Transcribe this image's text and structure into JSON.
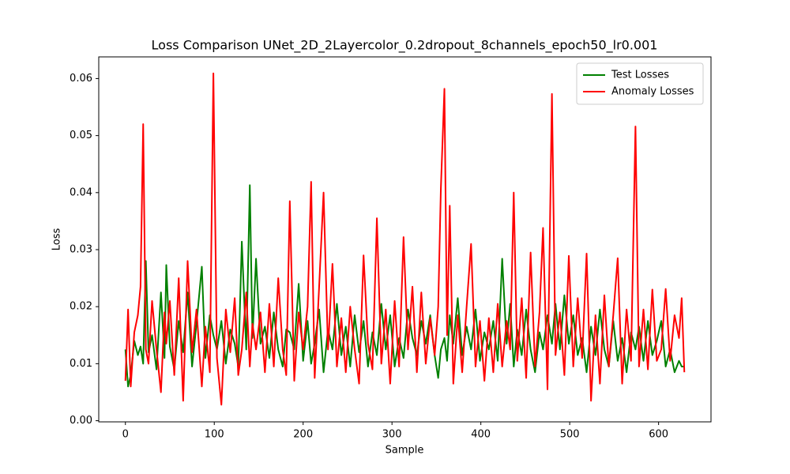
{
  "chart_data": {
    "type": "line",
    "title": "Loss Comparison UNet_2D_2Layercolor_0.2dropout_8channels_epoch50_lr0.001",
    "x_label": "Sample",
    "y_label": "Loss",
    "x": [
      0,
      3,
      6,
      10,
      14,
      17,
      20,
      23,
      26,
      30,
      35,
      40,
      44,
      46,
      50,
      55,
      60,
      65,
      70,
      75,
      80,
      86,
      90,
      95,
      99,
      103,
      108,
      113,
      118,
      123,
      127,
      131,
      136,
      140,
      143,
      147,
      152,
      157,
      162,
      167,
      172,
      177,
      181,
      185,
      190,
      195,
      200,
      205,
      209,
      213,
      218,
      223,
      228,
      233,
      238,
      243,
      248,
      253,
      258,
      263,
      268,
      273,
      278,
      283,
      288,
      293,
      298,
      303,
      308,
      313,
      318,
      323,
      328,
      333,
      338,
      343,
      348,
      352,
      355,
      359,
      362,
      365,
      369,
      374,
      379,
      384,
      389,
      394,
      399,
      404,
      409,
      414,
      419,
      424,
      429,
      433,
      437,
      441,
      446,
      451,
      456,
      461,
      466,
      470,
      475,
      480,
      484,
      489,
      494,
      499,
      504,
      509,
      514,
      519,
      524,
      529,
      534,
      539,
      544,
      549,
      554,
      559,
      564,
      569,
      574,
      578,
      583,
      588,
      593,
      598,
      603,
      608,
      613,
      618,
      623,
      626,
      629
    ],
    "series": [
      {
        "name": "Test Losses",
        "color": "#008000",
        "values": [
          0.0125,
          0.006,
          0.008,
          0.014,
          0.0115,
          0.013,
          0.01,
          0.028,
          0.012,
          0.015,
          0.009,
          0.0225,
          0.011,
          0.0273,
          0.013,
          0.009,
          0.0175,
          0.012,
          0.0225,
          0.0095,
          0.017,
          0.027,
          0.011,
          0.0185,
          0.015,
          0.0125,
          0.0175,
          0.01,
          0.016,
          0.0135,
          0.0095,
          0.0314,
          0.0125,
          0.0413,
          0.0145,
          0.0284,
          0.0135,
          0.0165,
          0.011,
          0.019,
          0.0125,
          0.0095,
          0.016,
          0.0155,
          0.0125,
          0.024,
          0.0105,
          0.0175,
          0.01,
          0.0135,
          0.0195,
          0.0085,
          0.016,
          0.0125,
          0.0205,
          0.0115,
          0.0165,
          0.0095,
          0.0185,
          0.012,
          0.0175,
          0.0095,
          0.0155,
          0.0115,
          0.0205,
          0.0125,
          0.0185,
          0.0095,
          0.0145,
          0.011,
          0.0195,
          0.0145,
          0.0115,
          0.0175,
          0.0135,
          0.0185,
          0.0115,
          0.0075,
          0.0125,
          0.0145,
          0.0105,
          0.0185,
          0.0135,
          0.0215,
          0.0115,
          0.0165,
          0.0125,
          0.0195,
          0.0105,
          0.0155,
          0.0125,
          0.0175,
          0.0105,
          0.0284,
          0.0135,
          0.0205,
          0.0095,
          0.016,
          0.0115,
          0.0195,
          0.0125,
          0.0085,
          0.0155,
          0.0125,
          0.0185,
          0.0135,
          0.0205,
          0.0125,
          0.022,
          0.0135,
          0.0185,
          0.0115,
          0.0145,
          0.0085,
          0.0165,
          0.0115,
          0.0195,
          0.0125,
          0.0095,
          0.0175,
          0.0105,
          0.0145,
          0.0085,
          0.0155,
          0.0125,
          0.0165,
          0.0105,
          0.0175,
          0.0115,
          0.014,
          0.0175,
          0.0095,
          0.0125,
          0.0085,
          0.0105,
          0.0095,
          0.0095
        ]
      },
      {
        "name": "Anomaly Losses",
        "color": "#ff0000",
        "values": [
          0.007,
          0.0195,
          0.006,
          0.0155,
          0.0185,
          0.0235,
          0.052,
          0.0125,
          0.01,
          0.021,
          0.0125,
          0.005,
          0.019,
          0.0135,
          0.021,
          0.008,
          0.025,
          0.0035,
          0.028,
          0.012,
          0.0195,
          0.006,
          0.0165,
          0.0085,
          0.0609,
          0.011,
          0.0028,
          0.0195,
          0.012,
          0.0215,
          0.008,
          0.0125,
          0.0225,
          0.0095,
          0.017,
          0.0125,
          0.019,
          0.0085,
          0.0205,
          0.0095,
          0.025,
          0.0125,
          0.008,
          0.0385,
          0.007,
          0.019,
          0.0125,
          0.02,
          0.0419,
          0.0075,
          0.0235,
          0.04,
          0.0125,
          0.0275,
          0.0095,
          0.018,
          0.0085,
          0.02,
          0.0125,
          0.0065,
          0.029,
          0.0135,
          0.009,
          0.0355,
          0.01,
          0.0195,
          0.0065,
          0.021,
          0.0095,
          0.0322,
          0.0125,
          0.0235,
          0.0085,
          0.0225,
          0.01,
          0.018,
          0.0115,
          0.02,
          0.0407,
          0.0582,
          0.015,
          0.0377,
          0.0065,
          0.0185,
          0.0085,
          0.02,
          0.031,
          0.0095,
          0.0175,
          0.007,
          0.018,
          0.0085,
          0.0205,
          0.0095,
          0.0175,
          0.0125,
          0.04,
          0.0105,
          0.0215,
          0.0075,
          0.0295,
          0.0095,
          0.019,
          0.0338,
          0.0055,
          0.0573,
          0.0115,
          0.019,
          0.008,
          0.0289,
          0.0095,
          0.0215,
          0.011,
          0.0293,
          0.0035,
          0.0185,
          0.0065,
          0.022,
          0.0095,
          0.0185,
          0.0285,
          0.0065,
          0.0195,
          0.0105,
          0.0516,
          0.0095,
          0.0195,
          0.009,
          0.023,
          0.0105,
          0.0125,
          0.0231,
          0.0105,
          0.0185,
          0.0145,
          0.0215,
          0.0085
        ]
      }
    ],
    "xlim": [
      -30,
      659
    ],
    "ylim": [
      -0.0002,
      0.0638
    ],
    "xticks": [
      0,
      100,
      200,
      300,
      400,
      500,
      600
    ],
    "yticks": [
      {
        "value": 0,
        "label": "0.00"
      },
      0.01,
      0.02,
      0.03,
      0.04,
      0.05,
      0.06
    ],
    "legend": "upper right"
  }
}
